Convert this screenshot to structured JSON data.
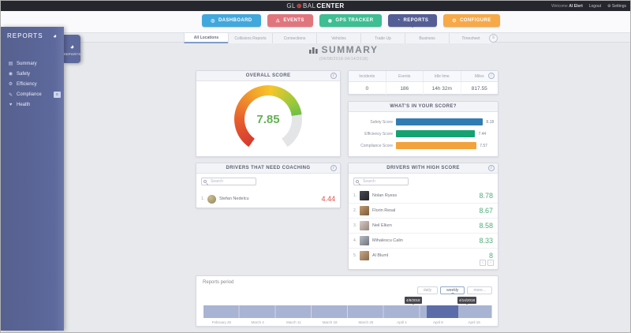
{
  "topbar": {
    "logo_left": "GL",
    "logo_globe": "⊕",
    "logo_mid": "BAL",
    "logo_right": "CENTER",
    "welcome_prefix": "Welcome",
    "user_name": "Al Elert",
    "logout_label": "Logout",
    "settings_label": "Settings",
    "settings_icon": "⚙"
  },
  "nav": {
    "items": [
      {
        "label": "DASHBOARD",
        "icon": "◎",
        "color": "#41a8dd",
        "active": false
      },
      {
        "label": "EVENTS",
        "icon": "⚠",
        "color": "#e0757e",
        "active": false
      },
      {
        "label": "GPS TRACKER",
        "icon": "◉",
        "color": "#3fbd93",
        "active": false
      },
      {
        "label": "REPORTS",
        "icon": "◔",
        "color": "#555e94",
        "active": true
      },
      {
        "label": "CONFIGURE",
        "icon": "⚙",
        "color": "#f7a948",
        "active": false
      }
    ]
  },
  "sidebar": {
    "title": "REPORTS",
    "pie_icon": "◕",
    "items": [
      {
        "icon": "▤",
        "label": "Summary"
      },
      {
        "icon": "◉",
        "label": "Safety"
      },
      {
        "icon": "⚙",
        "label": "Efficiency"
      },
      {
        "icon": "✎",
        "label": "Compliance",
        "badge": "≡"
      },
      {
        "icon": "♥",
        "label": "Health"
      }
    ],
    "handle_label": "REPORTS"
  },
  "tabstrip": {
    "tabs": [
      {
        "label": "All Locations",
        "active": true
      },
      {
        "label": "Collisions Reports",
        "active": false
      },
      {
        "label": "Connections",
        "active": false
      },
      {
        "label": "Vehicles",
        "active": false
      },
      {
        "label": "Trade Up",
        "active": false
      },
      {
        "label": "Business",
        "active": false
      },
      {
        "label": "Timesheet",
        "active": false
      }
    ],
    "corner_button_icon": "≡"
  },
  "page": {
    "title": "SUMMARY",
    "date_range": "(04/08/2018-04/14/2018)"
  },
  "overall_score": {
    "title": "OVERALL SCORE",
    "value": "7.85",
    "info_icon": "i"
  },
  "stats": {
    "columns": [
      "Incidents",
      "Events",
      "Idle time",
      "Miles"
    ],
    "values": [
      "0",
      "186",
      "14h 32m",
      "817.55"
    ],
    "info_icon": "i"
  },
  "score_breakdown": {
    "title": "WHAT'S IN YOUR SCORE?",
    "bars": [
      {
        "label": "Safety Score",
        "value": "8.18",
        "color": "#2f7db3"
      },
      {
        "label": "Efficiency Score",
        "value": "7.44",
        "color": "#16a173"
      },
      {
        "label": "Compliance Score",
        "value": "7.57",
        "color": "#f2a33c"
      }
    ]
  },
  "coaching": {
    "title": "DRIVERS THAT NEED COACHING",
    "info_icon": "i",
    "search_placeholder": "Search",
    "rows": [
      {
        "rank": "1.",
        "name": "Stefan Nedelcu",
        "score": "4.44"
      }
    ]
  },
  "high_score": {
    "title": "DRIVERS WITH HIGH SCORE",
    "info_icon": "i",
    "search_placeholder": "Search",
    "rows": [
      {
        "rank": "1.",
        "name": "Nolan Ryess",
        "score": "8.78"
      },
      {
        "rank": "2.",
        "name": "Florin Resal",
        "score": "8.67"
      },
      {
        "rank": "3.",
        "name": "Neil Elken",
        "score": "8.58"
      },
      {
        "rank": "4.",
        "name": "Mihalescu Calin",
        "score": "8.33"
      },
      {
        "rank": "5.",
        "name": "Al Bluml",
        "score": "8"
      }
    ],
    "pager": {
      "prev": "‹",
      "next": "›"
    }
  },
  "reports_period": {
    "label": "Reports period",
    "buttons": [
      {
        "label": "daily",
        "active": false
      },
      {
        "label": "weekly",
        "active": true
      },
      {
        "label": "more...",
        "active": false
      }
    ],
    "ticks": [
      "February 25",
      "March 4",
      "March 11",
      "March 18",
      "March 25",
      "April 1",
      "April 8",
      "April 15"
    ],
    "range_start_tooltip": "4/8/2018",
    "range_end_tooltip": "4/14/2018"
  }
}
